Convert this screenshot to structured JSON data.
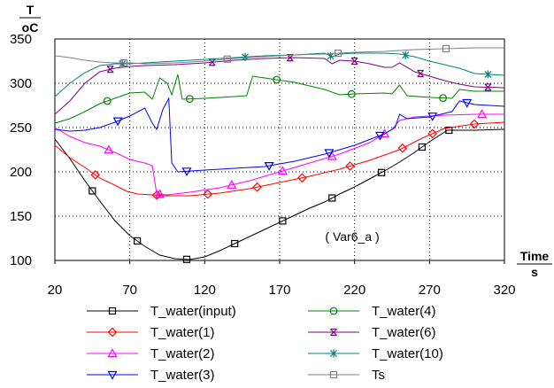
{
  "chart_data": {
    "type": "line",
    "title": "",
    "ylabel_num": "T",
    "ylabel_den": "oC",
    "xlabel_num": "Time",
    "xlabel_den": "s",
    "annotation": "( Var6_a )",
    "xlim": [
      20,
      320
    ],
    "ylim": [
      100,
      350
    ],
    "x_ticks": [
      "20",
      "70",
      "120",
      "170",
      "220",
      "270",
      "320"
    ],
    "y_ticks": [
      "100",
      "150",
      "200",
      "250",
      "300",
      "350"
    ],
    "grid": true,
    "legend_position": "bottom",
    "series": [
      {
        "name": "T_water(input)",
        "color": "#000000",
        "marker": "square",
        "points": [
          [
            20,
            237
          ],
          [
            30,
            215
          ],
          [
            40,
            190
          ],
          [
            50,
            167
          ],
          [
            60,
            145
          ],
          [
            70,
            128
          ],
          [
            80,
            116
          ],
          [
            90,
            106
          ],
          [
            100,
            102
          ],
          [
            110,
            101
          ],
          [
            120,
            104
          ],
          [
            130,
            111
          ],
          [
            140,
            119
          ],
          [
            150,
            127
          ],
          [
            160,
            135
          ],
          [
            170,
            143
          ],
          [
            180,
            151
          ],
          [
            190,
            159
          ],
          [
            200,
            166
          ],
          [
            210,
            175
          ],
          [
            220,
            183
          ],
          [
            230,
            192
          ],
          [
            240,
            201
          ],
          [
            250,
            211
          ],
          [
            260,
            222
          ],
          [
            270,
            234
          ],
          [
            282,
            247
          ],
          [
            300,
            247
          ],
          [
            320,
            248
          ]
        ],
        "marker_x": [
          45,
          75,
          108,
          140,
          172,
          205,
          238,
          265,
          283
        ]
      },
      {
        "name": "T_water(1)",
        "color": "#ff0000",
        "marker": "diamond",
        "points": [
          [
            20,
            230
          ],
          [
            30,
            216
          ],
          [
            40,
            205
          ],
          [
            50,
            193
          ],
          [
            60,
            185
          ],
          [
            68,
            178
          ],
          [
            75,
            175
          ],
          [
            85,
            174
          ],
          [
            95,
            173
          ],
          [
            110,
            173
          ],
          [
            130,
            176
          ],
          [
            150,
            181
          ],
          [
            170,
            188
          ],
          [
            190,
            195
          ],
          [
            210,
            203
          ],
          [
            230,
            213
          ],
          [
            250,
            225
          ],
          [
            265,
            238
          ],
          [
            280,
            249
          ],
          [
            300,
            254
          ],
          [
            320,
            256
          ]
        ],
        "marker_x": [
          47,
          88,
          122,
          155,
          185,
          217,
          252,
          272,
          300
        ]
      },
      {
        "name": "T_water(2)",
        "color": "#ff00ff",
        "marker": "triangle-up",
        "points": [
          [
            20,
            250
          ],
          [
            30,
            240
          ],
          [
            40,
            233
          ],
          [
            50,
            229
          ],
          [
            60,
            222
          ],
          [
            70,
            214
          ],
          [
            80,
            210
          ],
          [
            85,
            207
          ],
          [
            88,
            175
          ],
          [
            95,
            174
          ],
          [
            110,
            177
          ],
          [
            130,
            182
          ],
          [
            150,
            190
          ],
          [
            170,
            200
          ],
          [
            190,
            210
          ],
          [
            210,
            220
          ],
          [
            230,
            233
          ],
          [
            245,
            248
          ],
          [
            250,
            258
          ],
          [
            260,
            262
          ],
          [
            280,
            264
          ],
          [
            300,
            265
          ],
          [
            320,
            265
          ]
        ],
        "marker_x": [
          56,
          90,
          138,
          172,
          205,
          240,
          305
        ]
      },
      {
        "name": "T_water(3)",
        "color": "#0000ff",
        "marker": "triangle-down",
        "points": [
          [
            20,
            248
          ],
          [
            30,
            246
          ],
          [
            40,
            247
          ],
          [
            50,
            250
          ],
          [
            60,
            256
          ],
          [
            70,
            263
          ],
          [
            80,
            272
          ],
          [
            85,
            255
          ],
          [
            88,
            248
          ],
          [
            92,
            270
          ],
          [
            96,
            283
          ],
          [
            98,
            210
          ],
          [
            102,
            200
          ],
          [
            120,
            202
          ],
          [
            140,
            204
          ],
          [
            160,
            206
          ],
          [
            180,
            212
          ],
          [
            200,
            220
          ],
          [
            220,
            230
          ],
          [
            240,
            243
          ],
          [
            247,
            250
          ],
          [
            250,
            265
          ],
          [
            255,
            260
          ],
          [
            270,
            262
          ],
          [
            285,
            268
          ],
          [
            290,
            280
          ],
          [
            300,
            276
          ],
          [
            320,
            274
          ]
        ],
        "marker_x": [
          62,
          108,
          163,
          203,
          237,
          272,
          295
        ]
      },
      {
        "name": "T_water(4)",
        "color": "#008000",
        "marker": "circle",
        "points": [
          [
            20,
            255
          ],
          [
            30,
            260
          ],
          [
            40,
            268
          ],
          [
            50,
            277
          ],
          [
            60,
            283
          ],
          [
            70,
            289
          ],
          [
            80,
            290
          ],
          [
            85,
            282
          ],
          [
            90,
            306
          ],
          [
            95,
            300
          ],
          [
            98,
            287
          ],
          [
            102,
            310
          ],
          [
            105,
            282
          ],
          [
            120,
            283
          ],
          [
            140,
            285
          ],
          [
            148,
            286
          ],
          [
            152,
            308
          ],
          [
            160,
            306
          ],
          [
            180,
            301
          ],
          [
            200,
            293
          ],
          [
            210,
            287
          ],
          [
            220,
            288
          ],
          [
            240,
            289
          ],
          [
            245,
            288
          ],
          [
            250,
            298
          ],
          [
            255,
            286
          ],
          [
            270,
            284
          ],
          [
            285,
            283
          ],
          [
            290,
            293
          ],
          [
            300,
            291
          ],
          [
            320,
            291
          ]
        ],
        "marker_x": [
          55,
          110,
          168,
          218,
          279
        ]
      },
      {
        "name": "T_water(6)",
        "color": "#800080",
        "marker": "x",
        "points": [
          [
            20,
            265
          ],
          [
            30,
            280
          ],
          [
            40,
            300
          ],
          [
            50,
            313
          ],
          [
            60,
            317
          ],
          [
            70,
            319
          ],
          [
            80,
            320
          ],
          [
            100,
            321
          ],
          [
            120,
            323
          ],
          [
            140,
            326
          ],
          [
            160,
            328
          ],
          [
            180,
            329
          ],
          [
            200,
            328
          ],
          [
            205,
            322
          ],
          [
            210,
            326
          ],
          [
            220,
            325
          ],
          [
            230,
            322
          ],
          [
            240,
            318
          ],
          [
            245,
            318
          ],
          [
            250,
            323
          ],
          [
            260,
            313
          ],
          [
            280,
            303
          ],
          [
            290,
            299
          ],
          [
            300,
            296
          ],
          [
            320,
            295
          ]
        ],
        "marker_x": [
          57,
          125,
          177,
          220,
          264,
          309
        ]
      },
      {
        "name": "T_water(10)",
        "color": "#008080",
        "marker": "star",
        "points": [
          [
            20,
            285
          ],
          [
            30,
            300
          ],
          [
            40,
            312
          ],
          [
            50,
            320
          ],
          [
            60,
            322
          ],
          [
            70,
            322
          ],
          [
            80,
            323
          ],
          [
            100,
            325
          ],
          [
            120,
            327
          ],
          [
            140,
            329
          ],
          [
            160,
            331
          ],
          [
            180,
            332
          ],
          [
            200,
            334
          ],
          [
            205,
            330
          ],
          [
            210,
            333
          ],
          [
            220,
            334
          ],
          [
            240,
            334
          ],
          [
            250,
            333
          ],
          [
            260,
            330
          ],
          [
            270,
            325
          ],
          [
            280,
            321
          ],
          [
            290,
            317
          ],
          [
            300,
            311
          ],
          [
            320,
            309
          ]
        ],
        "marker_x": [
          65,
          147,
          204,
          254,
          309
        ]
      },
      {
        "name": "Ts",
        "color": "#808080",
        "marker": "square",
        "points": [
          [
            20,
            331
          ],
          [
            30,
            329
          ],
          [
            40,
            326
          ],
          [
            50,
            324
          ],
          [
            60,
            323
          ],
          [
            70,
            323
          ],
          [
            80,
            322
          ],
          [
            100,
            323
          ],
          [
            120,
            325
          ],
          [
            140,
            328
          ],
          [
            160,
            330
          ],
          [
            180,
            332
          ],
          [
            200,
            333
          ],
          [
            220,
            335
          ],
          [
            240,
            336
          ],
          [
            260,
            338
          ],
          [
            280,
            339
          ],
          [
            300,
            340
          ],
          [
            320,
            340
          ]
        ],
        "marker_x": [
          66,
          135,
          209,
          281
        ]
      }
    ]
  }
}
